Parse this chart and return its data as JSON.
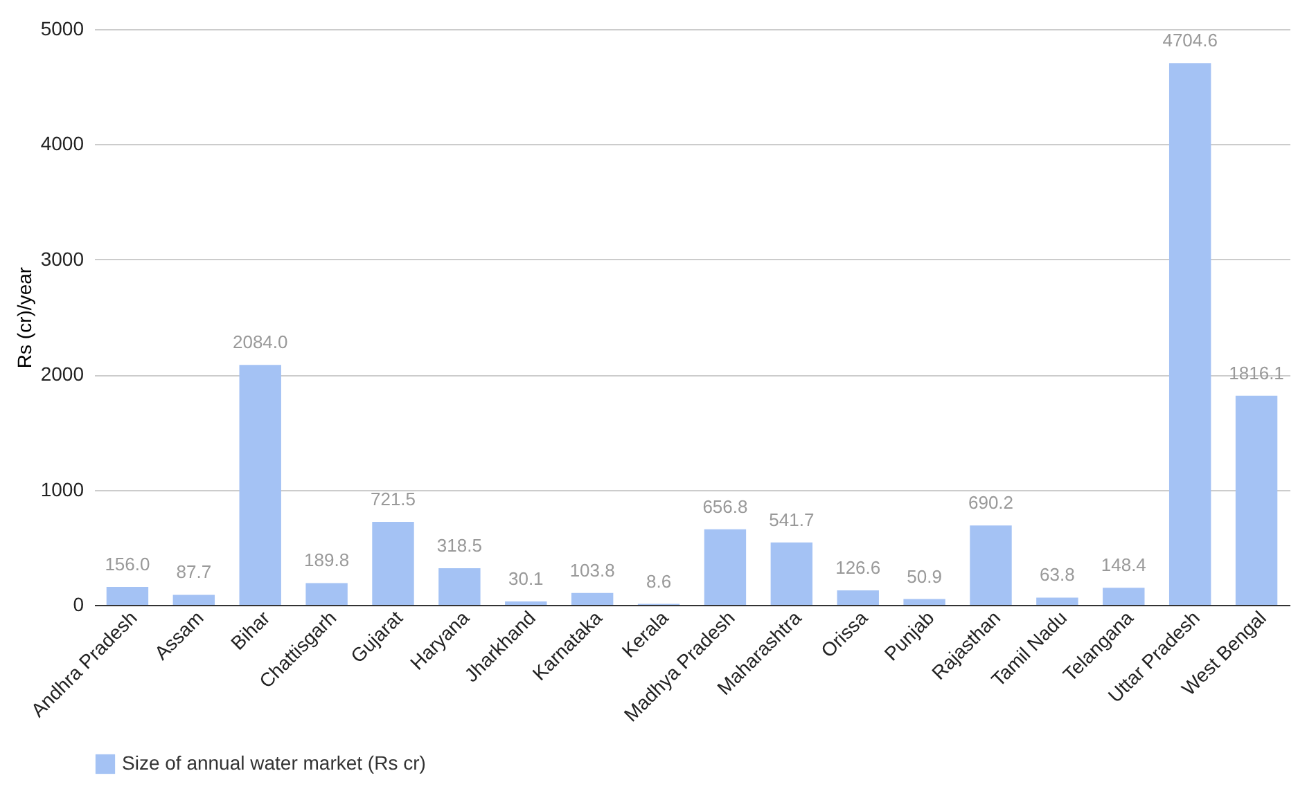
{
  "chart_data": {
    "type": "bar",
    "ylabel": "Rs (cr)/year",
    "categories": [
      "Andhra Pradesh",
      "Assam",
      "Bihar",
      "Chattisgarh",
      "Gujarat",
      "Haryana",
      "Jharkhand",
      "Karnataka",
      "Kerala",
      "Madhya Pradesh",
      "Maharashtra",
      "Orissa",
      "Punjab",
      "Rajasthan",
      "Tamil Nadu",
      "Telangana",
      "Uttar Pradesh",
      "West Bengal"
    ],
    "series": [
      {
        "name": "Size of annual water market (Rs cr)",
        "color": "#a4c2f4",
        "values": [
          156.0,
          87.7,
          2084.0,
          189.8,
          721.5,
          318.5,
          30.1,
          103.8,
          8.6,
          656.8,
          541.7,
          126.6,
          50.9,
          690.2,
          63.8,
          148.4,
          4704.6,
          1816.1
        ],
        "value_labels": [
          "156.0",
          "87.7",
          "2084.0",
          "189.8",
          "721.5",
          "318.5",
          "30.1",
          "103.8",
          "8.6",
          "656.8",
          "541.7",
          "126.6",
          "50.9",
          "690.2",
          "63.8",
          "148.4",
          "4704.6",
          "1816.1"
        ]
      }
    ],
    "ylim": [
      0,
      5000
    ],
    "yticks": [
      0,
      1000,
      2000,
      3000,
      4000,
      5000
    ],
    "grid": "y",
    "legend": "bottom"
  }
}
